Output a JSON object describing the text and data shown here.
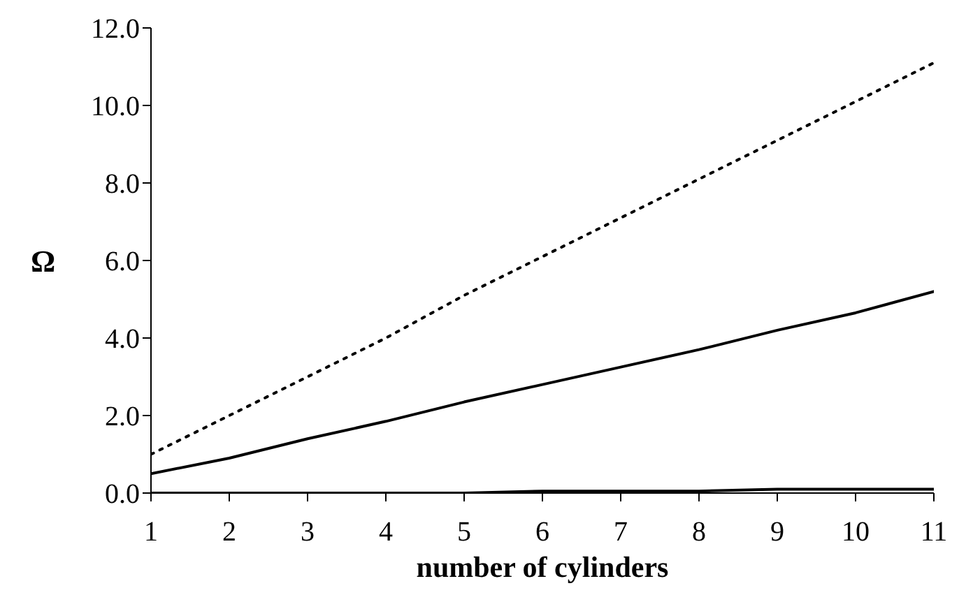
{
  "chart_data": {
    "type": "line",
    "xlabel": "number of cylinders",
    "ylabel": "Ω",
    "x": [
      1,
      2,
      3,
      4,
      5,
      6,
      7,
      8,
      9,
      10,
      11
    ],
    "series": [
      {
        "color": "#000000",
        "line_style": "dotted",
        "values": [
          1.0,
          2.0,
          3.0,
          4.0,
          5.1,
          6.1,
          7.1,
          8.1,
          9.1,
          10.1,
          11.1
        ]
      },
      {
        "color": "#000000",
        "line_style": "solid",
        "values": [
          0.5,
          0.9,
          1.4,
          1.85,
          2.35,
          2.8,
          3.25,
          3.7,
          4.2,
          4.65,
          5.2
        ]
      },
      {
        "color": "#000000",
        "line_style": "solid",
        "values": [
          0.0,
          0.0,
          0.0,
          0.0,
          0.0,
          0.05,
          0.05,
          0.05,
          0.1,
          0.1,
          0.1
        ]
      }
    ],
    "xlim": [
      1,
      11
    ],
    "xticks": [
      1,
      2,
      3,
      4,
      5,
      6,
      7,
      8,
      9,
      10,
      11
    ],
    "ylim": [
      0,
      12
    ],
    "yticks": [
      {
        "value": 0,
        "label": "0.0"
      },
      {
        "value": 2,
        "label": "2.0"
      },
      {
        "value": 4,
        "label": "4.0"
      },
      {
        "value": 6,
        "label": "6.0"
      },
      {
        "value": 8,
        "label": "8.0"
      },
      {
        "value": 10,
        "label": "10.0"
      },
      {
        "value": 12,
        "label": "12.0"
      }
    ],
    "grid": false,
    "legend": false,
    "marker": "none"
  }
}
